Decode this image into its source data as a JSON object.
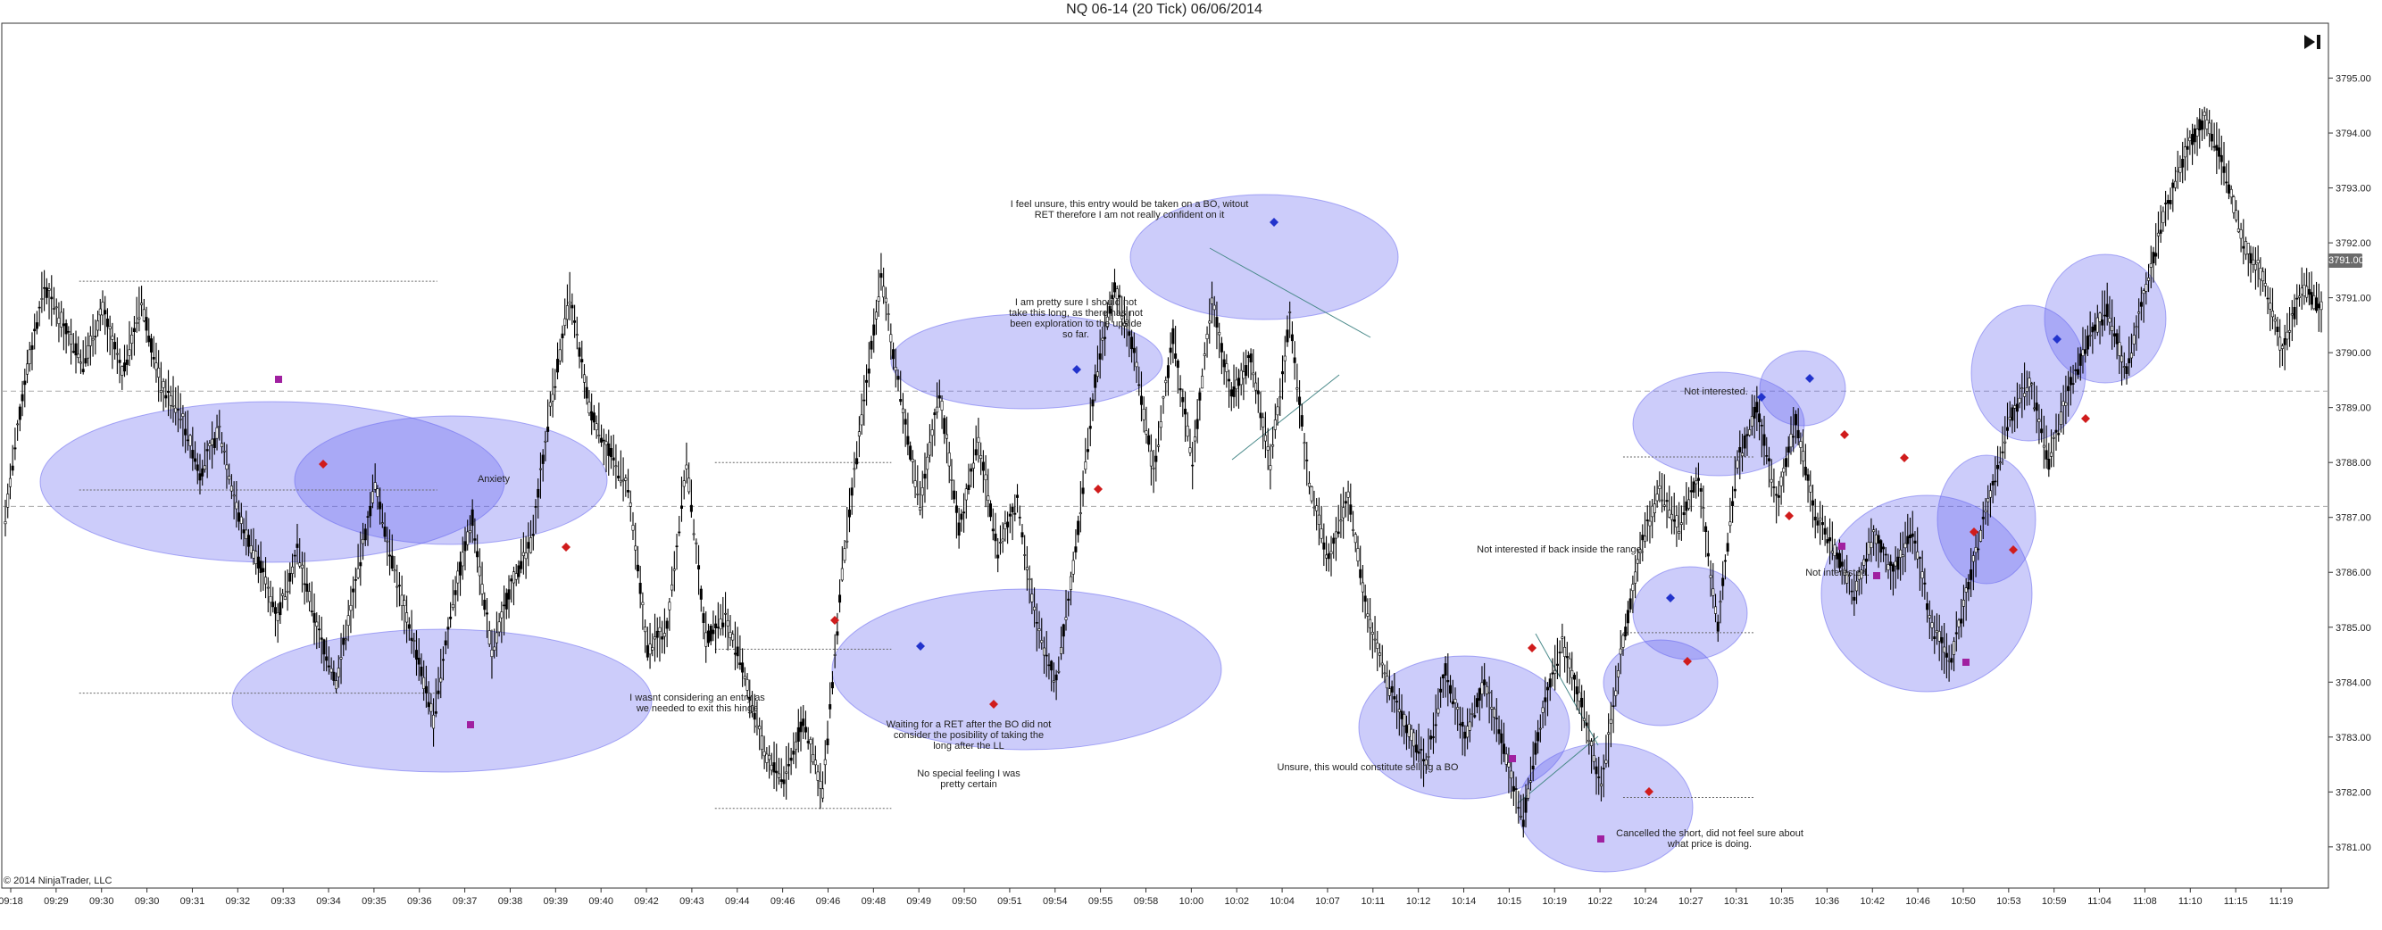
{
  "header": {
    "title": "NQ 06-14 (20 Tick)  06/06/2014"
  },
  "footer": {
    "copyright": "© 2014 NinjaTrader, LLC"
  },
  "price_badge": "3791.00",
  "chart_data": {
    "type": "candlestick",
    "title": "NQ 06-14 (20 Tick)  06/06/2014",
    "xlabel": "",
    "ylabel": "",
    "ylim": [
      3780.25,
      3796.0
    ],
    "grid": false,
    "y_ticks": [
      "3781.00",
      "3782.00",
      "3783.00",
      "3784.00",
      "3785.00",
      "3786.00",
      "3787.00",
      "3788.00",
      "3789.00",
      "3790.00",
      "3791.00",
      "3792.00",
      "3793.00",
      "3794.00",
      "3795.00"
    ],
    "x_ticks": [
      "09:18",
      "09:29",
      "09:30",
      "09:30",
      "09:31",
      "09:32",
      "09:33",
      "09:34",
      "09:35",
      "09:36",
      "09:37",
      "09:38",
      "09:39",
      "09:40",
      "09:42",
      "09:43",
      "09:44",
      "09:46",
      "09:46",
      "09:48",
      "09:49",
      "09:50",
      "09:51",
      "09:54",
      "09:55",
      "09:58",
      "10:00",
      "10:02",
      "10:04",
      "10:07",
      "10:11",
      "10:12",
      "10:14",
      "10:15",
      "10:19",
      "10:22",
      "10:24",
      "10:27",
      "10:31",
      "10:35",
      "10:36",
      "10:42",
      "10:46",
      "10:50",
      "10:53",
      "10:59",
      "11:04",
      "11:08",
      "11:10",
      "11:15",
      "11:19"
    ],
    "series": [
      {
        "values": [
          3787.0,
          3789.5,
          3791.2,
          3790.5,
          3789.8,
          3790.8,
          3789.6,
          3790.9,
          3789.4,
          3788.9,
          3787.8,
          3788.6,
          3787.0,
          3786.2,
          3785.2,
          3786.4,
          3785.0,
          3784.0,
          3785.8,
          3787.6,
          3786.0,
          3784.7,
          3783.3,
          3785.5,
          3787.0,
          3784.5,
          3785.8,
          3786.5,
          3789.0,
          3791.0,
          3789.0,
          3788.2,
          3787.5,
          3784.6,
          3785.0,
          3788.0,
          3784.8,
          3785.2,
          3784.1,
          3782.7,
          3782.2,
          3783.3,
          3782.0,
          3786.0,
          3788.8,
          3791.4,
          3789.2,
          3787.2,
          3789.3,
          3786.8,
          3788.4,
          3786.4,
          3787.3,
          3785.0,
          3784.0,
          3786.4,
          3789.5,
          3791.2,
          3790.0,
          3787.8,
          3790.3,
          3788.0,
          3791.0,
          3789.2,
          3789.9,
          3788.0,
          3790.6,
          3787.6,
          3786.2,
          3787.4,
          3785.2,
          3784.0,
          3783.2,
          3782.5,
          3784.2,
          3783.0,
          3784.0,
          3782.8,
          3781.5,
          3783.5,
          3784.7,
          3783.6,
          3782.0,
          3784.5,
          3786.4,
          3787.5,
          3786.8,
          3787.8,
          3785.0,
          3788.0,
          3789.0,
          3787.3,
          3788.8,
          3787.0,
          3786.4,
          3785.6,
          3786.7,
          3786.0,
          3786.8,
          3785.0,
          3784.4,
          3786.0,
          3787.4,
          3788.8,
          3789.5,
          3788.0,
          3789.3,
          3790.2,
          3790.8,
          3789.6,
          3791.2,
          3792.6,
          3793.6,
          3794.3,
          3793.4,
          3792.0,
          3791.4,
          3790.0,
          3791.2,
          3790.8
        ]
      }
    ],
    "support_lines": [
      {
        "price": 3791.3,
        "from": "09:30",
        "to": "09:36"
      },
      {
        "price": 3787.5,
        "from": "09:30",
        "to": "09:36"
      },
      {
        "price": 3783.8,
        "from": "09:30",
        "to": "09:36"
      },
      {
        "price": 3788.0,
        "from": "09:44",
        "to": "09:48"
      },
      {
        "price": 3784.6,
        "from": "09:44",
        "to": "09:48"
      },
      {
        "price": 3781.7,
        "from": "09:44",
        "to": "09:48"
      },
      {
        "price": 3788.1,
        "from": "10:24",
        "to": "10:31"
      },
      {
        "price": 3784.9,
        "from": "10:24",
        "to": "10:31"
      },
      {
        "price": 3781.9,
        "from": "10:24",
        "to": "10:31"
      }
    ],
    "reference_lines": [
      3789.3,
      3787.2
    ],
    "annotations": [
      "I feel unsure, this entry would be taken on a BO, witout RET therefore I am not really confident on it",
      "I am pretty sure I should not take this long, as there has not been exploration to the upside so far.",
      "Anxiety",
      "I wasnt considering an entry as we needed to exit this hinge",
      "Waiting for a RET after the BO did not consider the posibility of taking the long after the LL",
      "No special feeling I was pretty certain",
      "Not interested.",
      "Not interested if back inside the range.",
      "Not interested.",
      "Unsure, this would constitute selling a BO",
      "Cancelled the short, did not feel sure about what price is doing."
    ]
  }
}
